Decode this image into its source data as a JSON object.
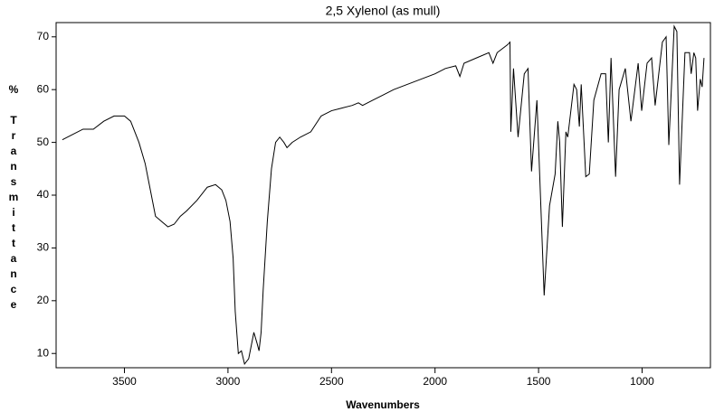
{
  "chart_data": {
    "type": "line",
    "title": "2,5 Xylenol (as mull)",
    "xlabel": "Wavenumbers",
    "ylabel": "% Transmittance",
    "xlim": [
      3830,
      670
    ],
    "ylim": [
      7.3,
      72.7
    ],
    "xticks": [
      3500,
      3000,
      2500,
      2000,
      1500,
      1000
    ],
    "yticks": [
      10,
      20,
      30,
      40,
      50,
      60,
      70
    ],
    "series": [
      {
        "name": "2,5 Xylenol",
        "color": "#000000",
        "x": [
          3800,
          3750,
          3700,
          3650,
          3600,
          3550,
          3500,
          3470,
          3430,
          3400,
          3370,
          3350,
          3320,
          3290,
          3260,
          3230,
          3200,
          3150,
          3100,
          3060,
          3030,
          3010,
          2990,
          2975,
          2965,
          2950,
          2935,
          2920,
          2900,
          2890,
          2875,
          2860,
          2850,
          2840,
          2830,
          2810,
          2790,
          2770,
          2750,
          2730,
          2715,
          2690,
          2650,
          2600,
          2550,
          2500,
          2450,
          2400,
          2370,
          2350,
          2300,
          2250,
          2200,
          2100,
          2000,
          1950,
          1900,
          1880,
          1860,
          1800,
          1740,
          1720,
          1700,
          1650,
          1638,
          1634,
          1621,
          1599,
          1569,
          1551,
          1534,
          1508,
          1473,
          1447,
          1420,
          1407,
          1398,
          1385,
          1368,
          1359,
          1329,
          1316,
          1303,
          1294,
          1272,
          1255,
          1233,
          1198,
          1176,
          1163,
          1150,
          1128,
          1111,
          1081,
          1054,
          1019,
          1002,
          976,
          954,
          937,
          902,
          884,
          871,
          845,
          832,
          819,
          793,
          771,
          763,
          750,
          741,
          732,
          719,
          710,
          701
        ],
        "values": [
          50.5,
          51.5,
          52.5,
          52.5,
          54,
          55,
          55,
          54,
          50,
          46,
          40,
          36,
          35,
          34,
          34.5,
          36,
          37,
          39,
          41.5,
          42,
          41,
          39,
          35,
          28,
          18,
          10,
          10.5,
          8,
          9,
          11,
          14,
          12,
          10.5,
          14,
          22,
          35,
          45,
          50,
          51,
          50,
          49,
          50,
          51,
          52,
          55,
          56,
          56.5,
          57,
          57.5,
          57,
          58,
          59,
          60,
          61.5,
          63,
          64,
          64.5,
          62.5,
          65,
          66,
          67,
          65,
          67,
          68.5,
          69,
          52,
          64,
          51,
          63,
          64,
          44.5,
          58,
          21,
          38,
          44,
          54,
          50,
          34,
          52,
          51,
          61,
          60,
          53,
          61,
          43.5,
          44,
          58,
          63,
          63,
          50,
          66,
          43.5,
          60,
          64,
          54,
          65,
          56,
          65,
          66,
          57,
          69,
          70,
          49.5,
          72,
          71,
          42,
          67,
          67,
          63,
          67,
          66,
          56,
          62,
          60.5,
          66
        ]
      }
    ]
  }
}
